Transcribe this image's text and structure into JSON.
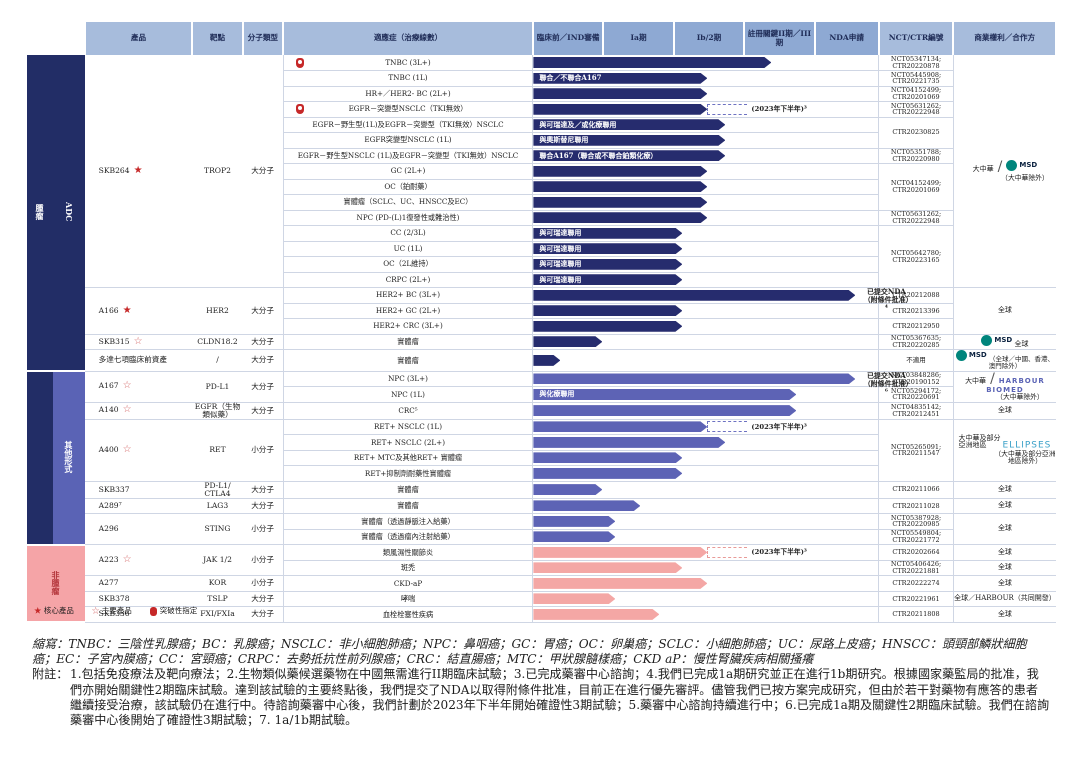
{
  "headers": {
    "product": "產品",
    "target": "靶點",
    "modality": "分子類型",
    "indication": "適應症（治療線數）",
    "preclinical": "臨床前／IND審備",
    "p1a": "Ia期",
    "p1b": "Ib/2期",
    "pivotal": "註冊關鍵II期／III期",
    "nda": "NDA申請",
    "nct": "NCT/CTR編號",
    "rights": "商業權利／合作方"
  },
  "categories": {
    "onco": "腫瘤",
    "adc": "ADC",
    "other": "其他形式",
    "non_onco": "非腫瘤"
  },
  "rows": [
    {
      "prod": "SKB264",
      "star": "core",
      "target": "TROP2",
      "mod": "大分子",
      "ind": "TNBC (3L+)",
      "bt": true,
      "bar": {
        "c": "dk",
        "end": 0.48
      },
      "nct": "NCT05347134; CTR20220878"
    },
    {
      "ind": "TNBC (1L)",
      "bar": {
        "c": "dk",
        "end": 0.35,
        "label": "聯合／不聯合A167"
      },
      "nct": "NCT05445908; CTR20221735"
    },
    {
      "ind": "HR+／HER2- BC (2L+)",
      "bar": {
        "c": "dk",
        "end": 0.35
      },
      "nct": "NCT04152499; CTR20201069"
    },
    {
      "ind": "EGFR－突變型NSCLC（TKI無效）",
      "bt": true,
      "bar": {
        "c": "dk",
        "end": 0.35,
        "dash": 0.43,
        "note": "(2023年下半年)³"
      },
      "nct": "NCT05631262; CTR20222948"
    },
    {
      "ind": "EGFR－野生型(1L)及EGFR－突變型（TKI無效）NSCLC",
      "bar": {
        "c": "dk",
        "end": 0.388,
        "label": "與可瑞達及／或化療聯用"
      },
      "nct": "CTR20230825"
    },
    {
      "ind": "EGFR突變型NSCLC (1L)",
      "bar": {
        "c": "dk",
        "end": 0.388,
        "label": "與奧斯替尼聯用"
      }
    },
    {
      "ind": "EGFR－野生型NSCLC (1L)及EGFR－突變型（TKI無效）NSCLC",
      "bar": {
        "c": "dk",
        "end": 0.388,
        "label": "聯合A167（聯合或不聯合鉑類化療）"
      },
      "nct": "NCT05351788; CTR20220980"
    },
    {
      "ind": "GC (2L+)",
      "bar": {
        "c": "dk",
        "end": 0.35
      },
      "nct": "NCT04152499; CTR20201069"
    },
    {
      "ind": "OC（鉑耐藥）",
      "bar": {
        "c": "dk",
        "end": 0.35
      }
    },
    {
      "ind": "實體瘤（SCLC、UC、HNSCC及EC）",
      "bar": {
        "c": "dk",
        "end": 0.35
      }
    },
    {
      "ind": "NPC (PD-(L)1復發性或難治性)",
      "bar": {
        "c": "dk",
        "end": 0.35
      },
      "nct": "NCT05631262; CTR20222948"
    },
    {
      "ind": "CC (2/3L)",
      "bar": {
        "c": "dk",
        "end": 0.3,
        "label": "與可瑞達聯用"
      },
      "nct": "NCT05642780; CTR20223165"
    },
    {
      "ind": "UC (1L)",
      "bar": {
        "c": "dk",
        "end": 0.3,
        "label": "與可瑞達聯用"
      }
    },
    {
      "ind": "OC（2L維持）",
      "bar": {
        "c": "dk",
        "end": 0.3,
        "label": "與可瑞達聯用"
      }
    },
    {
      "ind": "CRPC (2L+)",
      "bar": {
        "c": "dk",
        "end": 0.3,
        "label": "與可瑞達聯用"
      }
    },
    {
      "prod": "A166",
      "star": "core",
      "target": "HER2",
      "mod": "大分子",
      "ind": "HER2+ BC (3L+)",
      "bar": {
        "c": "dk",
        "end": 0.65
      },
      "nct": "CTR20212088",
      "rights": "全球"
    },
    {
      "ind": "HER2+ GC (2L+)",
      "bar": {
        "c": "dk",
        "end": 0.3
      },
      "nct": "CTR20213396"
    },
    {
      "ind": "HER2+ CRC (3L+)",
      "bar": {
        "c": "dk",
        "end": 0.3
      },
      "nct": "CTR20212950"
    },
    {
      "prod": "SKB315",
      "star": "main",
      "target": "CLDN18.2",
      "mod": "大分子",
      "ind": "實體瘤",
      "bar": {
        "c": "dk",
        "end": 0.14
      },
      "nct": "NCT05367635; CTR20220285",
      "rights": "全球"
    },
    {
      "prod": "多達七項臨床前資產",
      "target": "/",
      "mod": "大分子",
      "ind": "實體瘤",
      "bar": {
        "c": "dk",
        "end": 0.055
      },
      "nct": "不適用",
      "rights": "（全球／中國、香港、澳門除外）"
    },
    {
      "prod": "A167",
      "star": "main",
      "target": "PD-L1",
      "mod": "大分子",
      "ind": "NPC (3L+)",
      "bar": {
        "c": "md",
        "end": 0.65
      },
      "nct": "NCT03848286; CTR20190152",
      "rights": "大中華"
    },
    {
      "ind": "NPC (1L)",
      "bar": {
        "c": "md",
        "end": 0.53,
        "label": "與化療聯用"
      },
      "nct": "NCT05294172; CTR20220691"
    },
    {
      "prod": "A140",
      "star": "main",
      "target": "EGFR（生物類似藥）",
      "mod": "大分子",
      "ind": "CRC⁵",
      "bar": {
        "c": "md",
        "end": 0.53
      },
      "nct": "NCT04835142; CTR20212451",
      "rights": "全球"
    },
    {
      "prod": "A400",
      "star": "main",
      "target": "RET",
      "mod": "小分子",
      "ind": "RET+ NSCLC (1L)",
      "bar": {
        "c": "md",
        "end": 0.35,
        "dash": 0.43,
        "note": "(2023年下半年)³"
      },
      "nct": "NCT05265091; CTR20211547",
      "rights": "大中華及部分亞洲地區"
    },
    {
      "ind": "RET+ NSCLC (2L+)",
      "bar": {
        "c": "md",
        "end": 0.388
      }
    },
    {
      "ind": "RET+ MTC及其他RET+ 實體瘤",
      "bar": {
        "c": "md",
        "end": 0.3
      }
    },
    {
      "ind": "RET+抑制劑耐藥性實體瘤",
      "bar": {
        "c": "md",
        "end": 0.3
      }
    },
    {
      "prod": "SKB337",
      "target": "PD-L1/ CTLA4",
      "mod": "大分子",
      "ind": "實體瘤",
      "bar": {
        "c": "md",
        "end": 0.14
      },
      "nct": "CTR20211066",
      "rights": "全球"
    },
    {
      "prod": "A289⁷",
      "target": "LAG3",
      "mod": "大分子",
      "ind": "實體瘤",
      "bar": {
        "c": "md",
        "end": 0.215
      },
      "nct": "CTR20211028",
      "rights": "全球"
    },
    {
      "prod": "A296",
      "target": "STING",
      "mod": "小分子",
      "ind": "實體瘤（透過靜脈注入給藥）",
      "bar": {
        "c": "md",
        "end": 0.165
      },
      "nct": "NCT05387928; CTR20220985",
      "rights": "全球"
    },
    {
      "ind": "實體瘤（透過瘤內注射給藥）",
      "bar": {
        "c": "md",
        "end": 0.165
      },
      "nct": "NCT05549804; CTR20221772"
    },
    {
      "prod": "A223",
      "star": "main",
      "target": "JAK 1/2",
      "mod": "小分子",
      "ind": "類風濕性關節炎",
      "bar": {
        "c": "pk",
        "end": 0.35,
        "dash": 0.43,
        "note": "(2023年下半年)³"
      },
      "nct": "CTR20202664",
      "rights": "全球"
    },
    {
      "ind": "斑禿",
      "bar": {
        "c": "pk",
        "end": 0.3
      },
      "nct": "NCT05406426; CTR20221881",
      "rights": "全球"
    },
    {
      "prod": "A277",
      "target": "KOR",
      "mod": "小分子",
      "ind": "CKD-aP",
      "bar": {
        "c": "pk",
        "end": 0.35
      },
      "nct": "CTR20222274",
      "rights": "全球"
    },
    {
      "prod": "SKB378",
      "target": "TSLP",
      "mod": "大分子",
      "ind": "哮喘",
      "bar": {
        "c": "pk",
        "end": 0.165
      },
      "nct": "CTR20221961",
      "rights": "全球／HARBOUR（共同開發）"
    },
    {
      "prod": "SKB336",
      "target": "FXI/FXIa",
      "mod": "大分子",
      "ind": "血栓栓塞性疾病",
      "bar": {
        "c": "pk",
        "end": 0.255
      },
      "nct": "CTR20211808",
      "rights": "全球"
    }
  ],
  "nda": {
    "a166": "已提交NDA（附條件批准）⁴",
    "a167": "已提交NDA（附條件批准）⁶"
  },
  "skb264_rights": {
    "region": "大中華",
    "partner": "MSD",
    "note": "（大中華除外）"
  },
  "skb315_partner": "MSD",
  "pre_partner": "MSD",
  "a167_partner": "HARBOUR BIOMED",
  "a167_note": "（大中華除外）",
  "a400_partner": "ELLIPSES",
  "a400_note": "（大中華及部分亞洲地區除外）",
  "legend": {
    "core": "核心產品",
    "main": "主要產品",
    "bt": "突破性指定"
  },
  "abbr": "縮寫：TNBC：三陰性乳腺癌；BC：乳腺癌；NSCLC：非小細胞肺癌；NPC：鼻咽癌；GC：胃癌；OC：卵巢癌；SCLC：小細胞肺癌；UC：尿路上皮癌；HNSCC：頭頸部鱗狀細胞癌；EC：子宮內膜癌；CC：宮頸癌；CRPC：去勢抵抗性前列腺癌；CRC：結直腸癌；MTC：甲狀腺髓樣癌；CKD aP：慢性腎臟疾病相關搔癢",
  "fn_label": "附註：",
  "fn": "1.包括免疫療法及靶向療法；2.生物類似藥候選藥物在中國無需進行II期臨床試驗；3.已完成藥審中心諮詢；4.我們已完成1a期研究並正在進行1b期研究。根據國家藥監局的批准，我們亦開始關鍵性2期臨床試驗。達到該試驗的主要終點後，我們提交了NDA以取得附條件批准，目前正在進行優先審評。儘管我們已按方案完成研究，但由於若干對藥物有應答的患者繼續接受治療，該試驗仍在進行中。待諮詢藥審中心後，我們計劃於2023年下半年開始確證性3期試驗；5.藥審中心諮詢持續進行中；6.已完成1a期及關鍵性2期臨床試驗。我們在諮詢藥審中心後開始了確證性3期試驗；7. 1a/1b期試驗。"
}
